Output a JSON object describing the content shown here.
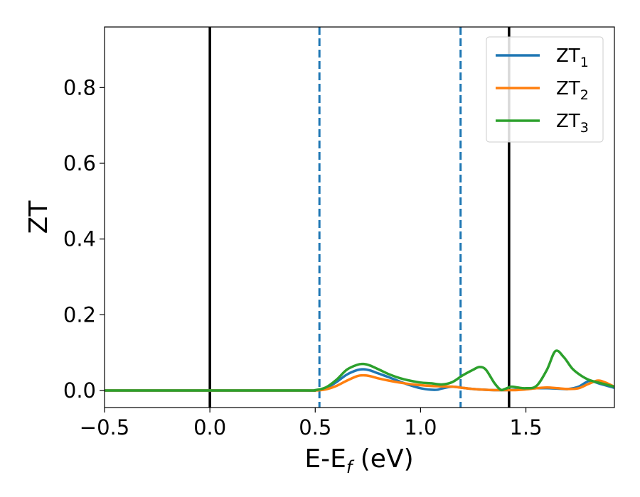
{
  "chart_data": {
    "type": "line",
    "xlabel": "E-E",
    "xlabel_sub": "f",
    "xlabel_unit": " (eV)",
    "ylabel": "ZT",
    "xlim": [
      -0.5,
      1.92
    ],
    "ylim": [
      -0.045,
      0.96
    ],
    "x_ticks": [
      -0.5,
      0.0,
      0.5,
      1.0,
      1.5
    ],
    "x_tick_labels": [
      "−0.5",
      "0.0",
      "0.5",
      "1.0",
      "1.5"
    ],
    "y_ticks": [
      0.0,
      0.2,
      0.4,
      0.6,
      0.8
    ],
    "y_tick_labels": [
      "0.0",
      "0.2",
      "0.4",
      "0.6",
      "0.8"
    ],
    "grid": false,
    "legend_position": "top-right",
    "vlines": [
      {
        "x": 0.0,
        "style": "solid",
        "color": "#000000"
      },
      {
        "x": 1.42,
        "style": "solid",
        "color": "#000000"
      },
      {
        "x": 0.52,
        "style": "dashed",
        "color": "#1f77b4"
      },
      {
        "x": 1.19,
        "style": "dashed",
        "color": "#1f77b4"
      }
    ],
    "series": [
      {
        "name": "ZT",
        "name_sub": "1",
        "color": "#1f77b4",
        "x": [
          -0.5,
          0.0,
          0.45,
          0.5,
          0.55,
          0.6,
          0.65,
          0.7,
          0.73,
          0.76,
          0.8,
          0.85,
          0.9,
          0.95,
          1.0,
          1.05,
          1.08,
          1.1,
          1.15,
          1.2,
          1.25,
          1.3,
          1.35,
          1.4,
          1.45,
          1.5,
          1.55,
          1.6,
          1.65,
          1.7,
          1.75,
          1.8,
          1.85,
          1.92
        ],
        "y": [
          0.0,
          0.0,
          0.0,
          0.0,
          0.006,
          0.022,
          0.042,
          0.054,
          0.056,
          0.053,
          0.045,
          0.035,
          0.024,
          0.014,
          0.006,
          0.002,
          0.002,
          0.005,
          0.01,
          0.007,
          0.004,
          0.002,
          0.001,
          0.001,
          0.002,
          0.004,
          0.006,
          0.006,
          0.005,
          0.004,
          0.01,
          0.025,
          0.018,
          0.007
        ]
      },
      {
        "name": "ZT",
        "name_sub": "2",
        "color": "#ff7f0e",
        "x": [
          -0.5,
          0.0,
          0.45,
          0.5,
          0.55,
          0.6,
          0.65,
          0.7,
          0.73,
          0.76,
          0.8,
          0.85,
          0.9,
          0.95,
          1.0,
          1.05,
          1.1,
          1.15,
          1.2,
          1.25,
          1.3,
          1.35,
          1.4,
          1.45,
          1.5,
          1.55,
          1.6,
          1.65,
          1.7,
          1.75,
          1.8,
          1.85,
          1.92
        ],
        "y": [
          0.0,
          0.0,
          0.0,
          0.0,
          0.003,
          0.012,
          0.026,
          0.038,
          0.04,
          0.038,
          0.032,
          0.026,
          0.021,
          0.017,
          0.014,
          0.012,
          0.011,
          0.01,
          0.007,
          0.004,
          0.002,
          0.001,
          0.001,
          0.001,
          0.003,
          0.006,
          0.008,
          0.006,
          0.004,
          0.006,
          0.018,
          0.026,
          0.01
        ]
      },
      {
        "name": "ZT",
        "name_sub": "3",
        "color": "#2ca02c",
        "x": [
          -0.5,
          0.0,
          0.45,
          0.5,
          0.55,
          0.6,
          0.65,
          0.7,
          0.73,
          0.76,
          0.8,
          0.85,
          0.9,
          0.95,
          1.0,
          1.05,
          1.1,
          1.15,
          1.2,
          1.25,
          1.28,
          1.31,
          1.35,
          1.38,
          1.4,
          1.43,
          1.46,
          1.5,
          1.55,
          1.6,
          1.64,
          1.68,
          1.72,
          1.76,
          1.8,
          1.85,
          1.92
        ],
        "y": [
          0.0,
          0.0,
          0.0,
          0.001,
          0.008,
          0.028,
          0.055,
          0.068,
          0.07,
          0.066,
          0.056,
          0.043,
          0.033,
          0.026,
          0.021,
          0.019,
          0.016,
          0.022,
          0.04,
          0.055,
          0.062,
          0.055,
          0.02,
          0.002,
          0.004,
          0.01,
          0.008,
          0.006,
          0.012,
          0.055,
          0.104,
          0.088,
          0.058,
          0.04,
          0.028,
          0.02,
          0.01
        ]
      }
    ]
  }
}
